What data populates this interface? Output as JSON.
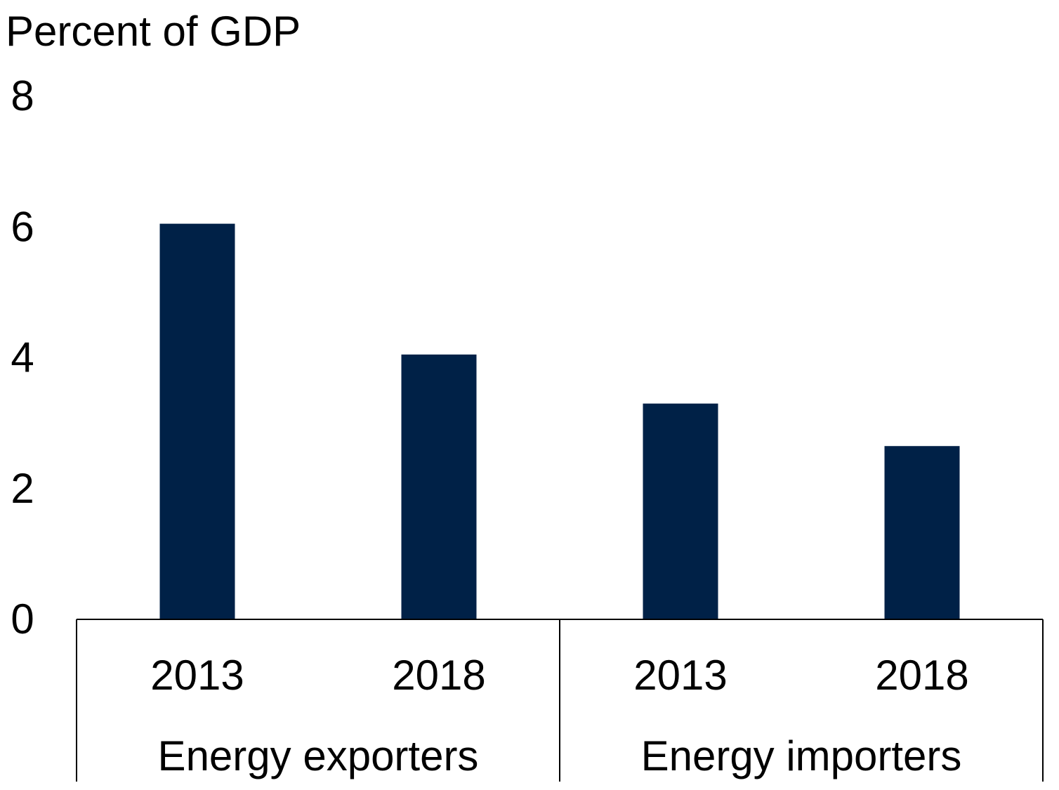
{
  "chart_data": {
    "type": "bar",
    "title": "",
    "ylabel": "Percent of GDP",
    "xlabel": "",
    "ylim": [
      0,
      8
    ],
    "yticks": [
      0,
      2,
      4,
      6,
      8
    ],
    "grid": false,
    "groups": [
      {
        "label": "Energy exporters",
        "categories": [
          "2013",
          "2018"
        ],
        "values": [
          6.05,
          4.05
        ]
      },
      {
        "label": "Energy importers",
        "categories": [
          "2013",
          "2018"
        ],
        "values": [
          3.3,
          2.65
        ]
      }
    ],
    "colors": {
      "bar": "#002147",
      "axis": "#000000"
    }
  }
}
